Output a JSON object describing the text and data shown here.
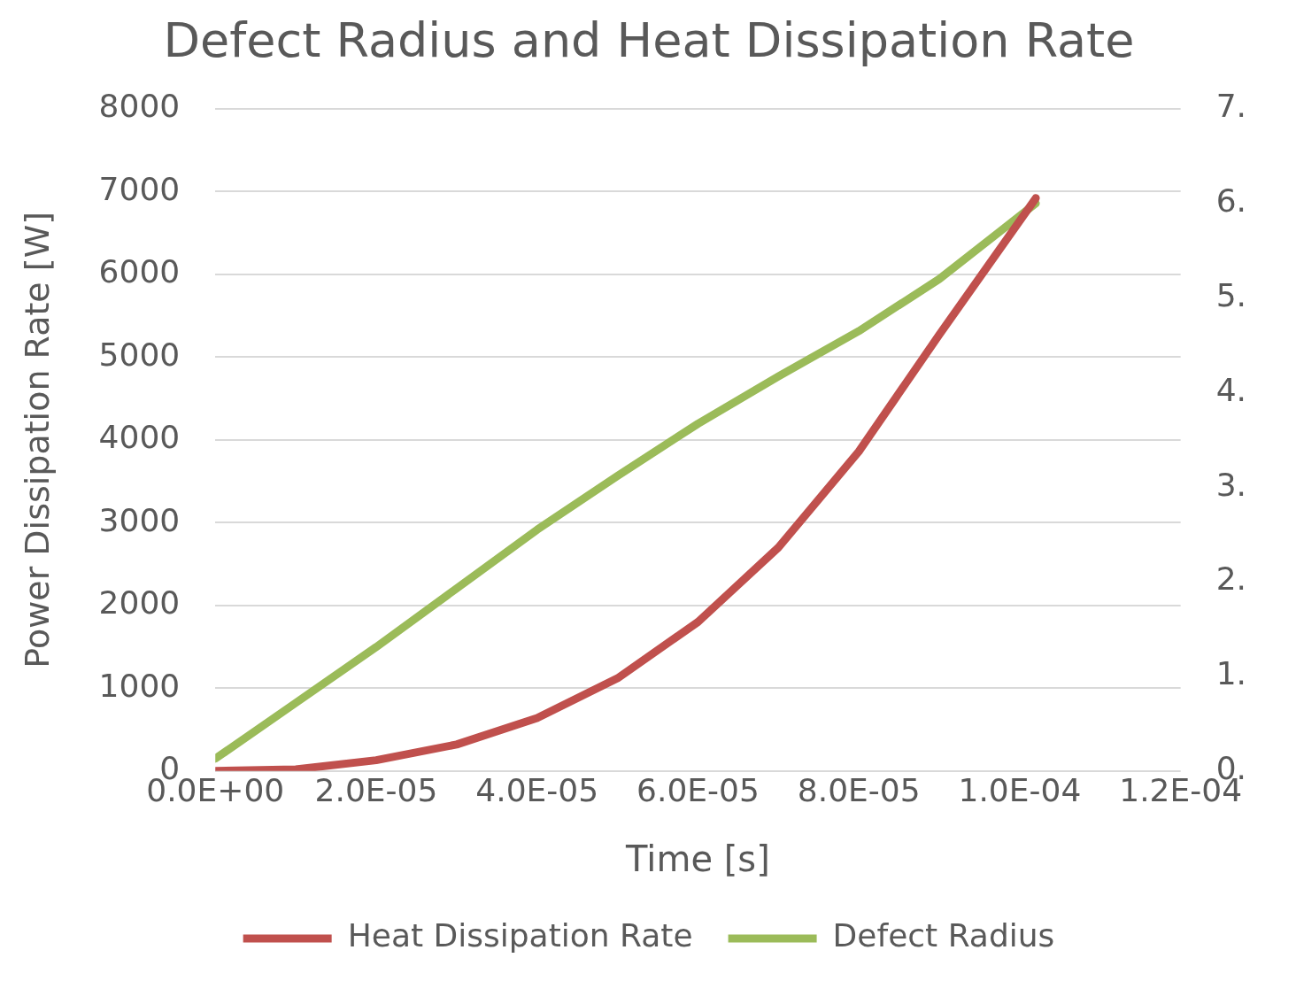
{
  "chart_data": {
    "type": "line",
    "title": "Defect Radius and Heat Dissipation Rate",
    "xlabel": "Time [s]",
    "ylabel": "Power Dissipation Rate [W]",
    "xlim": [
      0,
      0.00012
    ],
    "xticks": [
      {
        "value": 0,
        "label": "0.0E+00"
      },
      {
        "value": 2e-05,
        "label": "2.0E-05"
      },
      {
        "value": 4e-05,
        "label": "4.0E-05"
      },
      {
        "value": 6e-05,
        "label": "6.0E-05"
      },
      {
        "value": 8e-05,
        "label": "8.0E-05"
      },
      {
        "value": 0.0001,
        "label": "1.0E-04"
      },
      {
        "value": 0.00012,
        "label": "1.2E-04"
      }
    ],
    "ylim": [
      0,
      8000
    ],
    "yticks": [
      0,
      1000,
      2000,
      3000,
      4000,
      5000,
      6000,
      7000,
      8000
    ],
    "y2lim": [
      0,
      7
    ],
    "y2ticks": [
      {
        "value": 0,
        "label": "0."
      },
      {
        "value": 1,
        "label": "1."
      },
      {
        "value": 2,
        "label": "2."
      },
      {
        "value": 3,
        "label": "3."
      },
      {
        "value": 4,
        "label": "4."
      },
      {
        "value": 5,
        "label": "5."
      },
      {
        "value": 6,
        "label": "6."
      },
      {
        "value": 7,
        "label": "7."
      }
    ],
    "x": [
      0,
      1e-05,
      2e-05,
      3e-05,
      4e-05,
      5e-05,
      6e-05,
      7e-05,
      8e-05,
      9e-05,
      0.000102
    ],
    "series": [
      {
        "name": "Heat Dissipation Rate",
        "color": "#c0504d",
        "values": [
          0,
          20,
          130,
          320,
          640,
          1120,
          1800,
          2700,
          3860,
          5270,
          6920
        ]
      },
      {
        "name": "Defect Radius",
        "color": "#9bbb59",
        "axis": "y2",
        "values": [
          0.13,
          0.72,
          1.31,
          1.93,
          2.55,
          3.12,
          3.67,
          4.17,
          4.65,
          5.2,
          6.0
        ]
      }
    ],
    "grid": "y",
    "legend": "bottom",
    "marker": "none",
    "line_style": "solid"
  }
}
